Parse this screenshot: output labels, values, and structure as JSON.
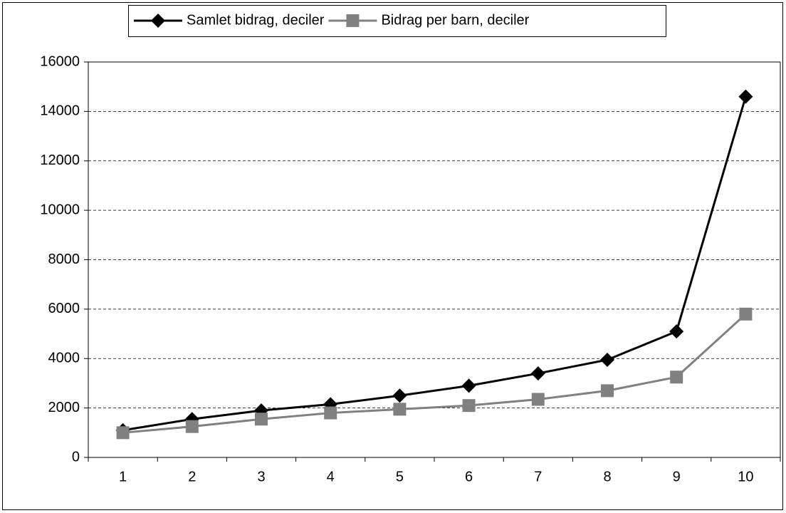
{
  "chart_data": {
    "type": "line",
    "categories": [
      "1",
      "2",
      "3",
      "4",
      "5",
      "6",
      "7",
      "8",
      "9",
      "10"
    ],
    "series": [
      {
        "name": "Samlet bidrag, deciler",
        "color": "#000000",
        "marker": "diamond",
        "values": [
          1100,
          1550,
          1900,
          2150,
          2500,
          2900,
          3400,
          3950,
          5100,
          14600
        ]
      },
      {
        "name": "Bidrag per barn, deciler",
        "color": "#808080",
        "marker": "square",
        "values": [
          1000,
          1250,
          1550,
          1800,
          1950,
          2100,
          2350,
          2700,
          3250,
          5800
        ]
      }
    ],
    "ylim": [
      0,
      16000
    ],
    "yticks": [
      0,
      2000,
      4000,
      6000,
      8000,
      10000,
      12000,
      14000,
      16000
    ],
    "grid": true,
    "legend": "top"
  }
}
